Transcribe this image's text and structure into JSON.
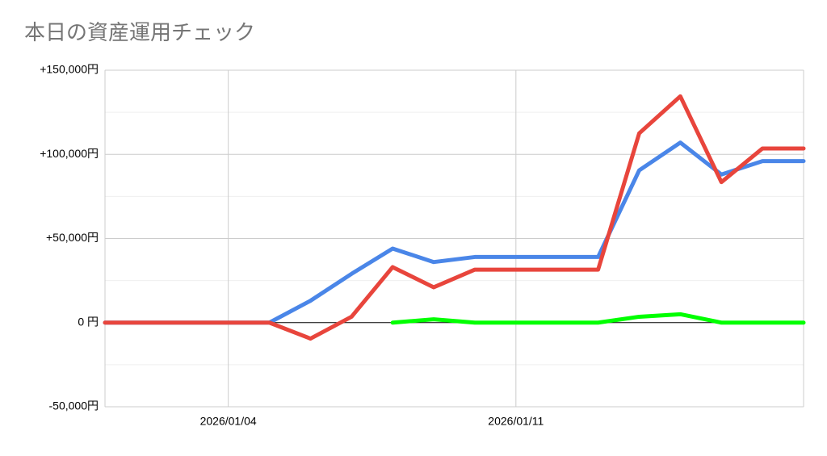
{
  "chart_data": {
    "type": "line",
    "title": "本日の資産運用チェック",
    "categories": [
      null,
      null,
      null,
      "2026/01/04",
      null,
      null,
      null,
      null,
      null,
      null,
      "2026/01/11",
      null,
      null,
      null,
      null,
      null,
      null,
      null
    ],
    "series": [
      {
        "color": "#4a86e8",
        "values": [
          0,
          0,
          0,
          0,
          0,
          13000,
          29000,
          44000,
          36000,
          39000,
          39000,
          39000,
          39000,
          90500,
          107000,
          88000,
          96000,
          96000
        ]
      },
      {
        "color": "#e8453c",
        "values": [
          0,
          0,
          0,
          0,
          0,
          -9500,
          3500,
          33000,
          21000,
          31500,
          31500,
          31500,
          31500,
          112500,
          134500,
          83500,
          103500,
          103500
        ]
      },
      {
        "color": "#00ff00",
        "values": [
          null,
          null,
          null,
          null,
          null,
          null,
          null,
          0,
          2000,
          0,
          0,
          0,
          0,
          3500,
          5000,
          0,
          0,
          0
        ]
      }
    ],
    "ylim": [
      -50000,
      150000
    ],
    "yticks": [
      {
        "value": -50000,
        "label": "-50,000円"
      },
      {
        "value": 0,
        "label": "0 円"
      },
      {
        "value": 50000,
        "label": "+50,000円"
      },
      {
        "value": 100000,
        "label": "+100,000円"
      },
      {
        "value": 150000,
        "label": "+150,000円"
      }
    ],
    "minor_yticks": [
      -25000,
      25000,
      75000,
      125000
    ],
    "grid": true
  }
}
